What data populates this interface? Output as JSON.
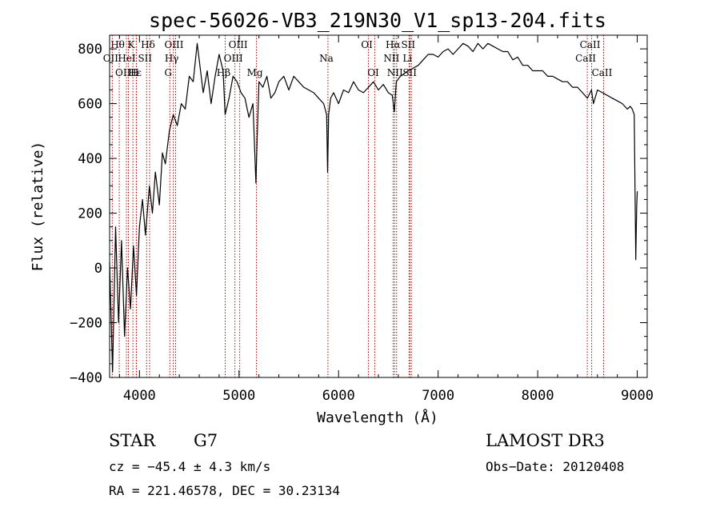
{
  "chart_data": {
    "type": "line",
    "title": "spec-56026-VB3_219N30_V1_sp13-204.fits",
    "xlabel": "Wavelength (Å)",
    "ylabel": "Flux (relative)",
    "xlim": [
      3700,
      9100
    ],
    "ylim": [
      -400,
      850
    ],
    "xticks": [
      4000,
      5000,
      6000,
      7000,
      8000,
      9000
    ],
    "yticks": [
      -400,
      -200,
      0,
      200,
      400,
      600,
      800
    ],
    "series": [
      {
        "name": "flux",
        "x": [
          3700,
          3730,
          3760,
          3790,
          3820,
          3850,
          3880,
          3910,
          3940,
          3970,
          4000,
          4030,
          4060,
          4100,
          4130,
          4160,
          4200,
          4230,
          4260,
          4300,
          4340,
          4380,
          4420,
          4460,
          4500,
          4540,
          4580,
          4600,
          4640,
          4680,
          4720,
          4760,
          4800,
          4840,
          4860,
          4900,
          4940,
          4980,
          5020,
          5060,
          5100,
          5140,
          5170,
          5180,
          5200,
          5240,
          5280,
          5320,
          5360,
          5400,
          5450,
          5500,
          5550,
          5600,
          5650,
          5700,
          5750,
          5800,
          5850,
          5880,
          5890,
          5900,
          5920,
          5950,
          6000,
          6050,
          6100,
          6150,
          6200,
          6250,
          6300,
          6350,
          6400,
          6450,
          6500,
          6540,
          6560,
          6580,
          6620,
          6660,
          6700,
          6750,
          6800,
          6850,
          6900,
          6950,
          7000,
          7050,
          7100,
          7150,
          7200,
          7250,
          7300,
          7350,
          7400,
          7450,
          7500,
          7550,
          7600,
          7650,
          7700,
          7750,
          7800,
          7850,
          7900,
          7950,
          8000,
          8050,
          8100,
          8150,
          8200,
          8250,
          8300,
          8350,
          8400,
          8450,
          8500,
          8540,
          8560,
          8600,
          8650,
          8700,
          8750,
          8800,
          8850,
          8900,
          8930,
          8950,
          8970,
          8985,
          8995,
          9000
        ],
        "values": [
          20,
          -380,
          150,
          -200,
          100,
          -250,
          0,
          -150,
          80,
          -100,
          150,
          250,
          120,
          300,
          200,
          350,
          230,
          420,
          380,
          500,
          560,
          520,
          600,
          580,
          700,
          680,
          820,
          760,
          640,
          720,
          600,
          700,
          780,
          720,
          560,
          620,
          700,
          680,
          640,
          620,
          550,
          600,
          310,
          450,
          680,
          660,
          700,
          620,
          640,
          680,
          700,
          650,
          700,
          680,
          660,
          650,
          640,
          620,
          600,
          560,
          350,
          560,
          620,
          640,
          600,
          650,
          640,
          680,
          650,
          640,
          660,
          680,
          650,
          670,
          640,
          630,
          570,
          680,
          700,
          710,
          720,
          730,
          740,
          760,
          780,
          780,
          770,
          790,
          800,
          780,
          800,
          820,
          810,
          790,
          820,
          800,
          820,
          810,
          800,
          790,
          790,
          760,
          770,
          740,
          740,
          720,
          720,
          720,
          700,
          700,
          690,
          680,
          680,
          660,
          660,
          640,
          620,
          650,
          600,
          650,
          640,
          630,
          620,
          610,
          600,
          580,
          590,
          580,
          560,
          30,
          230,
          280
        ]
      }
    ],
    "line_markers": [
      {
        "label": "Hθ",
        "x": 3797,
        "row": 0
      },
      {
        "label": "K",
        "x": 3934,
        "row": 0
      },
      {
        "label": "Hδ",
        "x": 4102,
        "row": 0
      },
      {
        "label": "OIII",
        "x": 4363,
        "row": 0
      },
      {
        "label": "OIII",
        "x": 5007,
        "row": 0
      },
      {
        "label": "OI",
        "x": 6300,
        "row": 0
      },
      {
        "label": "Hα",
        "x": 6563,
        "row": 0
      },
      {
        "label": "SII",
        "x": 6716,
        "row": 0
      },
      {
        "label": "CaII",
        "x": 8542,
        "row": 0
      },
      {
        "label": "OII",
        "x": 3727,
        "row": 1
      },
      {
        "label": "HeI",
        "x": 3889,
        "row": 1
      },
      {
        "label": "SII",
        "x": 4072,
        "row": 1
      },
      {
        "label": "Hγ",
        "x": 4340,
        "row": 1
      },
      {
        "label": "OIII",
        "x": 4959,
        "row": 1
      },
      {
        "label": "Na",
        "x": 5893,
        "row": 1
      },
      {
        "label": "NII",
        "x": 6548,
        "row": 1
      },
      {
        "label": "Li",
        "x": 6708,
        "row": 1
      },
      {
        "label": "CaII",
        "x": 8498,
        "row": 1
      },
      {
        "label": "OIII",
        "x": 3869,
        "row": 2
      },
      {
        "label": "Hε",
        "x": 3970,
        "row": 2
      },
      {
        "label": "H",
        "x": 3968,
        "row": 2
      },
      {
        "label": "G",
        "x": 4305,
        "row": 2
      },
      {
        "label": "Hβ",
        "x": 4861,
        "row": 2
      },
      {
        "label": "Mg",
        "x": 5175,
        "row": 2
      },
      {
        "label": "OI",
        "x": 6364,
        "row": 2
      },
      {
        "label": "NII",
        "x": 6583,
        "row": 2
      },
      {
        "label": "SII",
        "x": 6731,
        "row": 2
      },
      {
        "label": "CaII",
        "x": 8662,
        "row": 2
      }
    ]
  },
  "info": {
    "class": "STAR",
    "subclass": "G7",
    "survey": "LAMOST DR3",
    "cz": "cz = −45.4 ± 4.3 km/s",
    "obs_date": "Obs−Date: 20120408",
    "coords": "RA = 221.46578, DEC =  30.23134"
  }
}
